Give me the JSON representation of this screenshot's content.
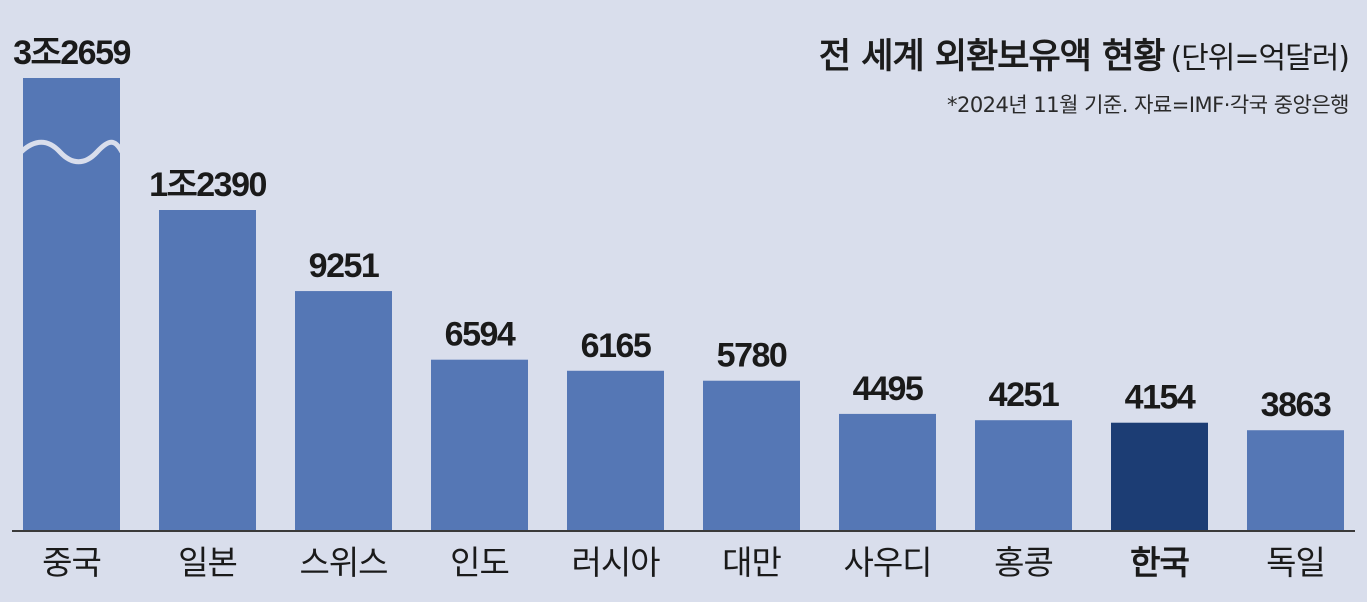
{
  "header": {
    "title": "전 세계 외환보유액 현황",
    "unit": "(단위=억달러)",
    "note": "*2024년 11월 기준. 자료=IMF·각국 중앙은행"
  },
  "colors": {
    "background": "#d9deec",
    "bar": "#5577b5",
    "bar_highlight": "#1c3d74",
    "axis": "#3a3a3a"
  },
  "chart_data": {
    "type": "bar",
    "title": "전 세계 외환보유액 현황",
    "subtitle": "(단위=억달러)",
    "annotations": [
      "*2024년 11월 기준. 자료=IMF·각국 중앙은행"
    ],
    "categories": [
      "중국",
      "일본",
      "스위스",
      "인도",
      "러시아",
      "대만",
      "사우디",
      "홍콩",
      "한국",
      "독일"
    ],
    "values": [
      32659,
      12390,
      9251,
      6594,
      6165,
      5780,
      4495,
      4251,
      4154,
      3863
    ],
    "value_labels": [
      "3조2659",
      "1조2390",
      "9251",
      "6594",
      "6165",
      "5780",
      "4495",
      "4251",
      "4154",
      "3863"
    ],
    "highlight": "한국",
    "axis_break": "중국",
    "xlabel": "",
    "ylabel": "",
    "grid": false,
    "legend": "none"
  }
}
